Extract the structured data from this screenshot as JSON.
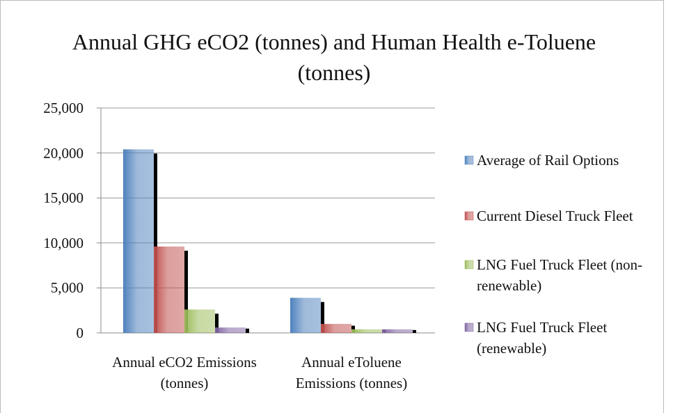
{
  "chart_data": {
    "type": "bar",
    "title": "Annual GHG eCO2 (tonnes) and Human Health e-Toluene (tonnes)",
    "categories": [
      "Annual eCO2 Emissions (tonnes)",
      "Annual eToluene Emissions (tonnes)"
    ],
    "series": [
      {
        "name": "Average of Rail Options",
        "color": "#4f81bd",
        "values": [
          20400,
          3900
        ]
      },
      {
        "name": "Current Diesel Truck Fleet",
        "color": "#c0504d",
        "values": [
          9600,
          1000
        ]
      },
      {
        "name": "LNG Fuel Truck Fleet (non-renewable)",
        "color": "#9bbb59",
        "values": [
          2600,
          400
        ]
      },
      {
        "name": "LNG Fuel Truck Fleet (renewable)",
        "color": "#8064a2",
        "values": [
          600,
          400
        ]
      }
    ],
    "ylim": [
      0,
      25000
    ],
    "yticks": [
      0,
      {
        "value": 5000,
        "label": "5,000"
      },
      {
        "value": 10000,
        "label": "10,000"
      },
      {
        "value": 15000,
        "label": "15,000"
      },
      {
        "value": 20000,
        "label": "20,000"
      },
      {
        "value": 25000,
        "label": "25,000"
      }
    ],
    "grid": true,
    "legend": "right"
  }
}
